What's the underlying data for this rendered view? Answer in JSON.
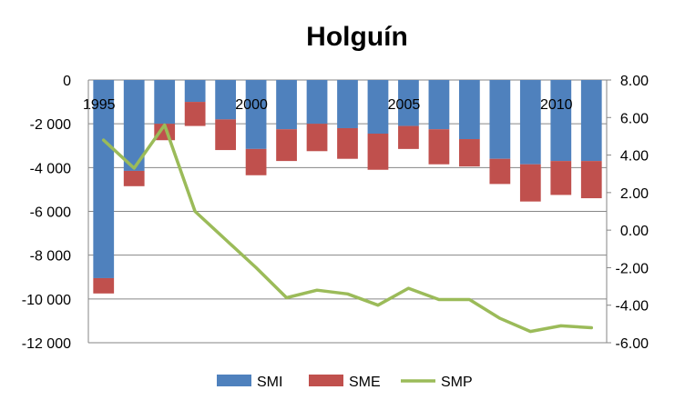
{
  "chart_data": {
    "type": "bar",
    "title": "Holguín",
    "categories": [
      "1995",
      "1996",
      "1997",
      "1998",
      "1999",
      "2000",
      "2001",
      "2002",
      "2003",
      "2004",
      "2005",
      "2006",
      "2007",
      "2008",
      "2009",
      "2010",
      "2011"
    ],
    "x_tick_labels": [
      "1995",
      "2000",
      "2005",
      "2010"
    ],
    "series": [
      {
        "name": "SMI",
        "kind": "stacked-bar",
        "axis": "left",
        "color": "#4F81BD",
        "values": [
          -9050,
          -4150,
          -2000,
          -1000,
          -1800,
          -3150,
          -2250,
          -2000,
          -2200,
          -2450,
          -2100,
          -2250,
          -2700,
          -3600,
          -3850,
          -3700,
          -3700
        ]
      },
      {
        "name": "SME",
        "kind": "stacked-bar",
        "axis": "left",
        "color": "#C0504D",
        "values": [
          -700,
          -700,
          -750,
          -1100,
          -1400,
          -1200,
          -1450,
          -1250,
          -1400,
          -1650,
          -1050,
          -1600,
          -1250,
          -1150,
          -1700,
          -1550,
          -1700
        ]
      },
      {
        "name": "SMP",
        "kind": "line",
        "axis": "right",
        "color": "#9BBB59",
        "values": [
          4.8,
          3.3,
          5.6,
          1.0,
          -0.5,
          -2.0,
          -3.6,
          -3.2,
          -3.4,
          -4.0,
          -3.1,
          -3.7,
          -3.7,
          -4.7,
          -5.4,
          -5.1,
          -5.2
        ]
      }
    ],
    "y_left": {
      "min": -12000,
      "max": 0,
      "step": 2000,
      "tick_labels": [
        "0",
        "-2 000",
        "-4 000",
        "-6 000",
        "-8 000",
        "-10 000",
        "-12 000"
      ]
    },
    "y_right": {
      "min": -6,
      "max": 8,
      "step": 2,
      "tick_labels": [
        "8.00",
        "6.00",
        "4.00",
        "2.00",
        "0.00",
        "-2.00",
        "-4.00",
        "-6.00"
      ]
    },
    "grid": true,
    "legend_position": "bottom"
  }
}
